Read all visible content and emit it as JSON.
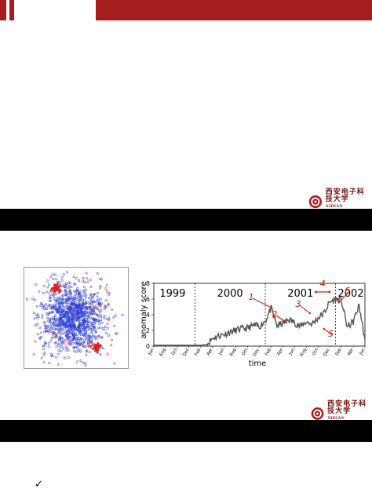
{
  "logo": {
    "name_cn": "西安电子科技大学",
    "name_en": "XIDIAN UNIVERSITY"
  },
  "colors": {
    "accent_red": "#a61d1d",
    "band_black": "#000000",
    "scatter_blue": "#2b3fd6",
    "scatter_red": "#e0201e",
    "line_gray": "#555555",
    "annotation_red": "#cc2200"
  },
  "bullet": {
    "icon": "check-icon",
    "glyph": "✓"
  },
  "chart_data": [
    {
      "type": "scatter",
      "description_series": [
        {
          "name": "",
          "color": "#2b3fd6"
        },
        {
          "name": "",
          "color": "#e0201e"
        }
      ]
    },
    {
      "type": "line",
      "xlabel": "time",
      "ylabel": "anomaly score",
      "ylim": [
        0,
        8
      ],
      "yticks": [
        "0",
        "2",
        "4",
        "6",
        "8"
      ],
      "xticks": [
        "Jun",
        "Aug",
        "Oct",
        "Dec",
        "Feb",
        "Apr",
        "Jun",
        "Aug",
        "Oct",
        "Dec",
        "Feb",
        "Apr",
        "Jun",
        "Aug",
        "Oct",
        "Dec",
        "Feb",
        "Apr",
        "Jun"
      ],
      "year_labels": [
        "1999",
        "2000",
        "2001",
        "2002"
      ],
      "annotations": [
        "1",
        "2",
        "3",
        "4",
        "5",
        "6"
      ],
      "x_months": [
        0,
        1,
        2,
        3,
        4,
        5,
        6,
        7,
        8,
        9,
        10,
        11,
        12,
        13,
        14,
        15,
        16,
        17,
        18,
        19,
        20,
        21,
        22,
        23,
        24,
        25,
        26,
        27,
        28,
        29,
        30,
        31,
        32,
        33,
        34,
        35,
        36
      ],
      "values": [
        0.1,
        0.1,
        0.1,
        0.1,
        0.1,
        0.1,
        0.1,
        0.1,
        0.1,
        0.2,
        1.0,
        1.3,
        1.5,
        1.8,
        2.0,
        2.2,
        2.3,
        2.6,
        2.5,
        3.2,
        4.8,
        2.6,
        2.9,
        3.4,
        3.0,
        2.5,
        3.1,
        2.8,
        3.6,
        4.2,
        5.6,
        6.0,
        5.8,
        2.4,
        3.1,
        5.2,
        0.8
      ]
    }
  ]
}
